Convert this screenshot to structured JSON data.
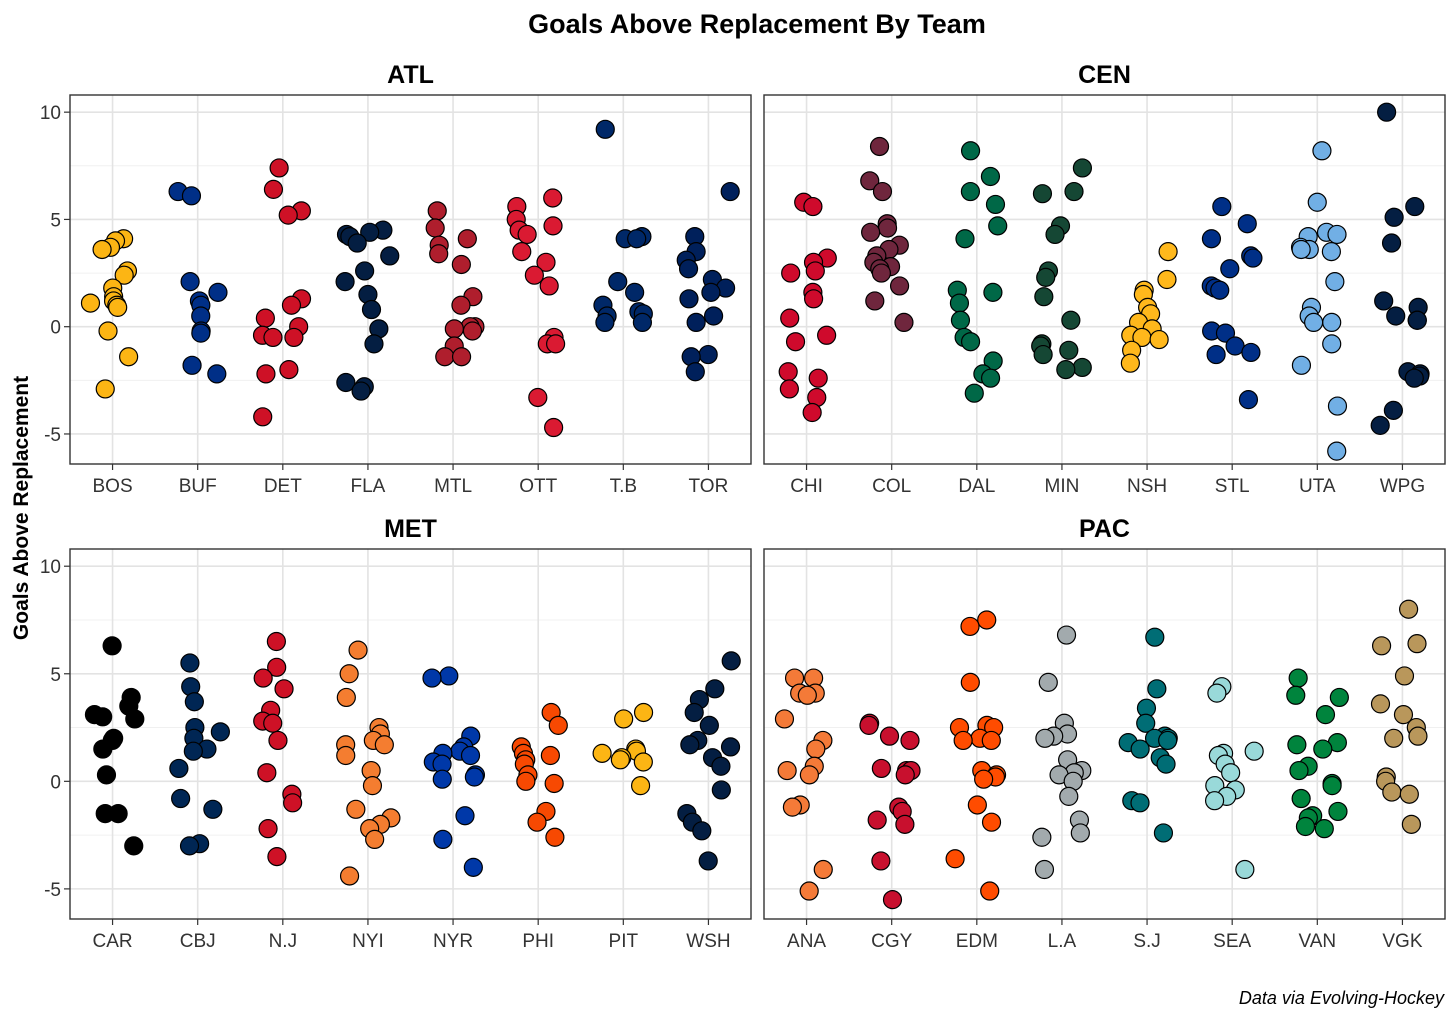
{
  "chart_data": {
    "type": "scatter",
    "title": "Goals Above Replacement By Team",
    "ylabel": "Goals Above Replacement",
    "caption": "Data via Evolving-Hockey",
    "ylim": [
      -6.4,
      10.8
    ],
    "yticks": [
      10,
      5,
      0,
      -5
    ],
    "ytick_labels": [
      "10",
      "5",
      "0",
      "-5"
    ],
    "grid": true,
    "panels": [
      {
        "name": "ATL",
        "teams": [
          {
            "team": "BOS",
            "color": "#FCB514",
            "values": [
              4.1,
              4.0,
              3.7,
              3.6,
              2.6,
              2.4,
              1.8,
              1.4,
              1.2,
              1.1,
              1.0,
              0.9,
              -0.2,
              -1.4,
              -2.9
            ]
          },
          {
            "team": "BUF",
            "color": "#002F87",
            "values": [
              6.3,
              6.1,
              2.1,
              1.6,
              1.2,
              1.0,
              0.5,
              -0.2,
              -0.3,
              -1.8,
              -2.2
            ]
          },
          {
            "team": "DET",
            "color": "#CE1126",
            "values": [
              7.4,
              6.4,
              5.4,
              5.2,
              1.3,
              1.0,
              0.4,
              0.0,
              -0.4,
              -0.5,
              -0.5,
              -2.0,
              -2.2,
              -4.2
            ]
          },
          {
            "team": "FLA",
            "color": "#041E42",
            "values": [
              4.5,
              4.4,
              4.3,
              4.2,
              3.9,
              3.3,
              2.6,
              2.1,
              1.5,
              0.8,
              -0.1,
              -0.8,
              -2.6,
              -2.8,
              -3.0
            ]
          },
          {
            "team": "MTL",
            "color": "#AF1E2D",
            "values": [
              5.4,
              4.6,
              4.1,
              3.8,
              3.4,
              2.9,
              1.4,
              1.0,
              0.0,
              0.0,
              -0.1,
              -0.2,
              -0.9,
              -1.4,
              -1.4
            ]
          },
          {
            "team": "OTT",
            "color": "#DA1A32",
            "values": [
              6.0,
              5.6,
              5.0,
              4.7,
              4.5,
              4.3,
              3.5,
              3.0,
              2.4,
              1.9,
              -0.5,
              -0.8,
              -0.8,
              -3.3,
              -4.7
            ]
          },
          {
            "team": "T.B",
            "color": "#002868",
            "values": [
              9.2,
              4.2,
              4.1,
              4.1,
              2.1,
              1.6,
              1.0,
              0.7,
              0.6,
              0.5,
              0.2,
              0.2
            ]
          },
          {
            "team": "TOR",
            "color": "#00205B",
            "values": [
              6.3,
              4.2,
              3.5,
              3.1,
              2.7,
              2.2,
              1.8,
              1.6,
              1.3,
              0.5,
              0.2,
              -1.3,
              -1.4,
              -2.1
            ]
          }
        ]
      },
      {
        "name": "CEN",
        "teams": [
          {
            "team": "CHI",
            "color": "#CF0A2C",
            "values": [
              5.8,
              5.6,
              3.2,
              3.0,
              2.6,
              2.5,
              1.6,
              1.3,
              0.4,
              -0.4,
              -0.7,
              -2.1,
              -2.4,
              -2.9,
              -3.3,
              -4.0
            ]
          },
          {
            "team": "COL",
            "color": "#6F263D",
            "values": [
              8.4,
              6.8,
              6.3,
              4.8,
              4.6,
              4.4,
              3.8,
              3.6,
              3.3,
              3.0,
              2.8,
              2.7,
              2.5,
              1.9,
              1.2,
              0.2
            ]
          },
          {
            "team": "DAL",
            "color": "#006847",
            "values": [
              8.2,
              7.0,
              6.3,
              5.7,
              4.7,
              4.1,
              1.7,
              1.6,
              1.1,
              0.3,
              -0.5,
              -0.7,
              -1.6,
              -2.2,
              -2.4,
              -3.1
            ]
          },
          {
            "team": "MIN",
            "color": "#154734",
            "values": [
              7.4,
              6.3,
              6.2,
              4.7,
              4.3,
              2.6,
              2.3,
              1.4,
              0.3,
              -0.8,
              -0.9,
              -1.1,
              -1.3,
              -1.9,
              -2.0
            ]
          },
          {
            "team": "NSH",
            "color": "#FFB81C",
            "values": [
              3.5,
              2.2,
              1.7,
              1.5,
              0.9,
              0.6,
              0.2,
              -0.1,
              -0.4,
              -0.5,
              -0.6,
              -1.1,
              -1.7
            ]
          },
          {
            "team": "STL",
            "color": "#002F87",
            "values": [
              5.6,
              4.8,
              4.1,
              3.3,
              3.2,
              2.7,
              1.9,
              1.8,
              1.7,
              -0.2,
              -0.3,
              -0.9,
              -1.2,
              -1.3,
              -3.4
            ]
          },
          {
            "team": "UTA",
            "color": "#71AFE5",
            "values": [
              8.2,
              5.8,
              4.4,
              4.3,
              4.2,
              3.7,
              3.6,
              3.6,
              3.5,
              2.1,
              0.9,
              0.5,
              0.2,
              0.2,
              -0.8,
              -1.8,
              -3.7,
              -5.8
            ]
          },
          {
            "team": "WPG",
            "color": "#041E42",
            "values": [
              10.0,
              5.6,
              5.1,
              3.9,
              1.2,
              0.9,
              0.5,
              0.3,
              0.3,
              -2.1,
              -2.2,
              -2.3,
              -2.4,
              -3.9,
              -4.6
            ]
          }
        ]
      },
      {
        "name": "MET",
        "teams": [
          {
            "team": "CAR",
            "color": "#000000",
            "values": [
              6.3,
              3.9,
              3.5,
              3.1,
              3.0,
              2.9,
              2.0,
              1.9,
              1.5,
              0.3,
              -1.5,
              -1.5,
              -3.0
            ]
          },
          {
            "team": "CBJ",
            "color": "#002654",
            "values": [
              5.5,
              4.4,
              3.7,
              2.5,
              2.3,
              2.0,
              1.5,
              1.4,
              0.6,
              -0.8,
              -1.3,
              -2.9,
              -3.0
            ]
          },
          {
            "team": "N.J",
            "color": "#CE1126",
            "values": [
              6.5,
              5.3,
              4.8,
              4.3,
              3.3,
              2.8,
              2.7,
              1.9,
              0.4,
              -0.6,
              -1.0,
              -2.2,
              -3.5
            ]
          },
          {
            "team": "NYI",
            "color": "#F47D30",
            "values": [
              6.1,
              5.0,
              3.9,
              2.5,
              2.2,
              1.9,
              1.7,
              1.7,
              1.2,
              0.5,
              -0.2,
              -1.3,
              -1.7,
              -2.0,
              -2.2,
              -2.7,
              -4.4
            ]
          },
          {
            "team": "NYR",
            "color": "#0038A8",
            "values": [
              4.9,
              4.8,
              2.1,
              1.6,
              1.4,
              1.3,
              1.2,
              0.9,
              0.8,
              0.3,
              0.2,
              0.1,
              -1.6,
              -2.7,
              -4.0
            ]
          },
          {
            "team": "PHI",
            "color": "#F74902",
            "values": [
              3.2,
              2.6,
              1.6,
              1.3,
              1.2,
              1.0,
              0.8,
              0.3,
              0.0,
              -0.1,
              -1.4,
              -1.9,
              -2.6
            ]
          },
          {
            "team": "PIT",
            "color": "#FCB514",
            "values": [
              3.2,
              2.9,
              1.5,
              1.4,
              1.3,
              1.1,
              1.0,
              0.9,
              -0.2
            ]
          },
          {
            "team": "WSH",
            "color": "#041E42",
            "values": [
              5.6,
              4.3,
              3.8,
              3.2,
              2.6,
              1.9,
              1.7,
              1.6,
              1.1,
              0.7,
              -0.4,
              -1.5,
              -1.9,
              -2.3,
              -3.7
            ]
          }
        ]
      },
      {
        "name": "PAC",
        "teams": [
          {
            "team": "ANA",
            "color": "#F47A38",
            "values": [
              4.8,
              4.8,
              4.1,
              4.1,
              4.0,
              2.9,
              1.9,
              1.5,
              0.7,
              0.5,
              0.3,
              -1.1,
              -1.2,
              -4.1,
              -5.1
            ]
          },
          {
            "team": "CGY",
            "color": "#C8102E",
            "values": [
              2.7,
              2.6,
              2.1,
              1.9,
              0.6,
              0.5,
              0.5,
              0.3,
              -1.2,
              -1.4,
              -1.8,
              -2.0,
              -3.7,
              -5.5
            ]
          },
          {
            "team": "EDM",
            "color": "#FF4C00",
            "values": [
              7.5,
              7.2,
              4.6,
              2.6,
              2.5,
              2.5,
              2.0,
              1.9,
              1.9,
              0.5,
              0.3,
              0.2,
              0.1,
              -1.1,
              -1.9,
              -3.6,
              -5.1
            ]
          },
          {
            "team": "L.A",
            "color": "#A2AAAD",
            "values": [
              6.8,
              4.6,
              2.7,
              2.2,
              2.1,
              2.0,
              1.0,
              0.5,
              0.4,
              0.3,
              0.0,
              -0.7,
              -1.8,
              -2.4,
              -2.6,
              -4.1
            ]
          },
          {
            "team": "S.J",
            "color": "#006D75",
            "values": [
              6.7,
              4.3,
              3.4,
              2.7,
              2.1,
              2.0,
              2.0,
              1.9,
              1.8,
              1.5,
              1.1,
              0.8,
              -0.9,
              -1.0,
              -2.4
            ]
          },
          {
            "team": "SEA",
            "color": "#99D9D9",
            "values": [
              4.4,
              4.1,
              1.4,
              1.3,
              1.2,
              0.8,
              0.4,
              -0.2,
              -0.4,
              -0.7,
              -0.9,
              -4.1
            ]
          },
          {
            "team": "VAN",
            "color": "#00843D",
            "values": [
              4.8,
              4.0,
              3.9,
              3.1,
              1.8,
              1.7,
              1.5,
              0.7,
              0.5,
              -0.1,
              -0.2,
              -0.8,
              -1.4,
              -1.6,
              -1.7,
              -2.1,
              -2.2
            ]
          },
          {
            "team": "VGK",
            "color": "#B9975B",
            "values": [
              8.0,
              6.4,
              6.3,
              4.9,
              3.6,
              3.1,
              2.5,
              2.1,
              2.0,
              0.2,
              0.0,
              -0.5,
              -0.6,
              -2.0
            ]
          }
        ]
      }
    ]
  }
}
